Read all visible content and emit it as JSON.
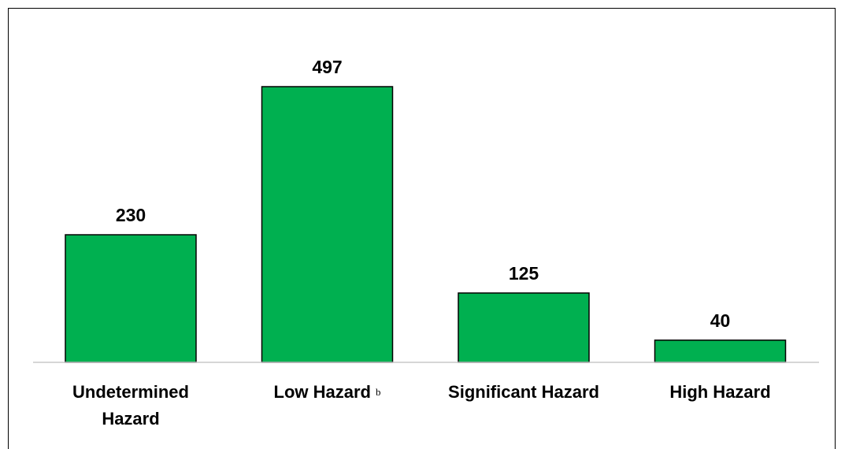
{
  "chart_data": {
    "type": "bar",
    "categories": [
      {
        "lines": [
          "Undetermined",
          "Hazard"
        ],
        "footnote": ""
      },
      {
        "lines": [
          "Low Hazard"
        ],
        "footnote": "b"
      },
      {
        "lines": [
          "Significant Hazard"
        ],
        "footnote": ""
      },
      {
        "lines": [
          "High Hazard"
        ],
        "footnote": ""
      }
    ],
    "values": [
      230,
      497,
      125,
      40
    ],
    "title": "",
    "xlabel": "",
    "ylabel": "",
    "ylim": [
      0,
      550
    ],
    "grid": false,
    "legend": "none",
    "bar_color": "#00b050",
    "bar_border_color": "#000000",
    "axis_color": "#c8c8c8"
  }
}
